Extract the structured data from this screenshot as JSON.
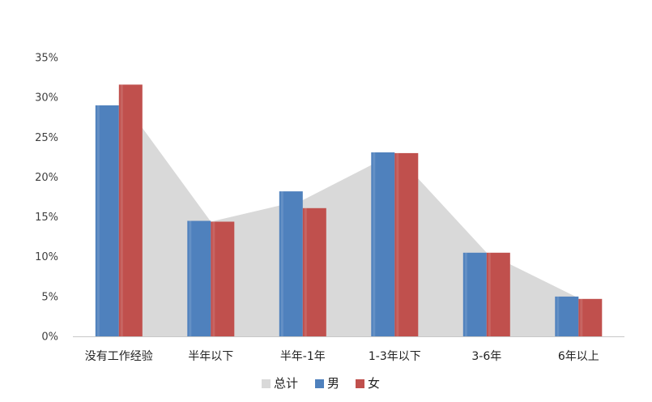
{
  "chart_data": {
    "type": "bar",
    "categories": [
      "没有工作经验",
      "半年以下",
      "半年-1年",
      "1-3年以下",
      "3-6年",
      "6年以上"
    ],
    "series": [
      {
        "name": "总计",
        "kind": "area",
        "values": [
          30.2,
          14.4,
          17.1,
          23.0,
          10.5,
          4.8
        ]
      },
      {
        "name": "男",
        "kind": "bar",
        "values": [
          29.0,
          14.5,
          18.2,
          23.1,
          10.5,
          5.0
        ]
      },
      {
        "name": "女",
        "kind": "bar",
        "values": [
          31.6,
          14.4,
          16.1,
          23.0,
          10.5,
          4.7
        ]
      }
    ],
    "yticks": [
      "0%",
      "5%",
      "10%",
      "15%",
      "20%",
      "25%",
      "30%",
      "35%"
    ],
    "ylim": [
      0,
      35
    ],
    "grid": false,
    "legend_position": "bottom",
    "colors": {
      "总计": "#d9d9d9",
      "男": "#4f81bd",
      "女": "#c0504d"
    }
  }
}
